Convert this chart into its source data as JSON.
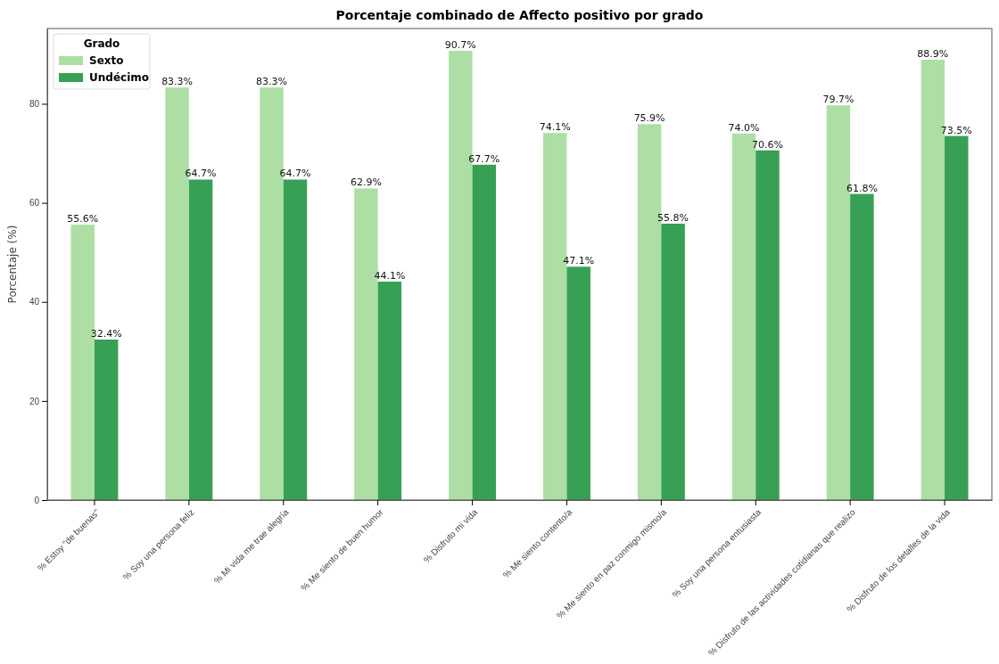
{
  "chart_data": {
    "type": "bar",
    "title": "Porcentaje combinado de Affecto positivo por grado",
    "ylabel": "Porcentaje (%)",
    "legend_title": "Grado",
    "legend": "top left",
    "grid": false,
    "categories": [
      "% Estoy \"de buenas\"",
      "% Soy una persona feliz",
      "% Mi vida me trae alegría",
      "% Me siento de buen humor",
      "% Disfruto mi vida",
      "% Me siento contento/a",
      "% Me siento en paz conmigo mismo/a",
      "% Soy una persona entusiasta",
      "% Disfruto de las actividades cotidianas que realizo",
      "% Disfruto de los detalles de la vida"
    ],
    "series": [
      {
        "name": "Sexto",
        "color": "#addfa5",
        "values": [
          55.6,
          83.3,
          83.3,
          62.9,
          90.7,
          74.1,
          75.9,
          74.0,
          79.7,
          88.9
        ],
        "value_labels": [
          "55.6%",
          "83.3%",
          "83.3%",
          "62.9%",
          "90.7%",
          "74.1%",
          "75.9%",
          "74.0%",
          "79.7%",
          "88.9%"
        ]
      },
      {
        "name": "Undécimo",
        "color": "#38a055",
        "values": [
          32.4,
          64.7,
          64.7,
          44.1,
          67.7,
          47.1,
          55.8,
          70.6,
          61.8,
          73.5
        ],
        "value_labels": [
          "32.4%",
          "64.7%",
          "64.7%",
          "44.1%",
          "67.7%",
          "47.1%",
          "55.8%",
          "70.6%",
          "61.8%",
          "73.5%"
        ]
      }
    ],
    "ylim": [
      0,
      95.2
    ],
    "yticks": [
      0,
      20,
      40,
      60,
      80
    ]
  }
}
